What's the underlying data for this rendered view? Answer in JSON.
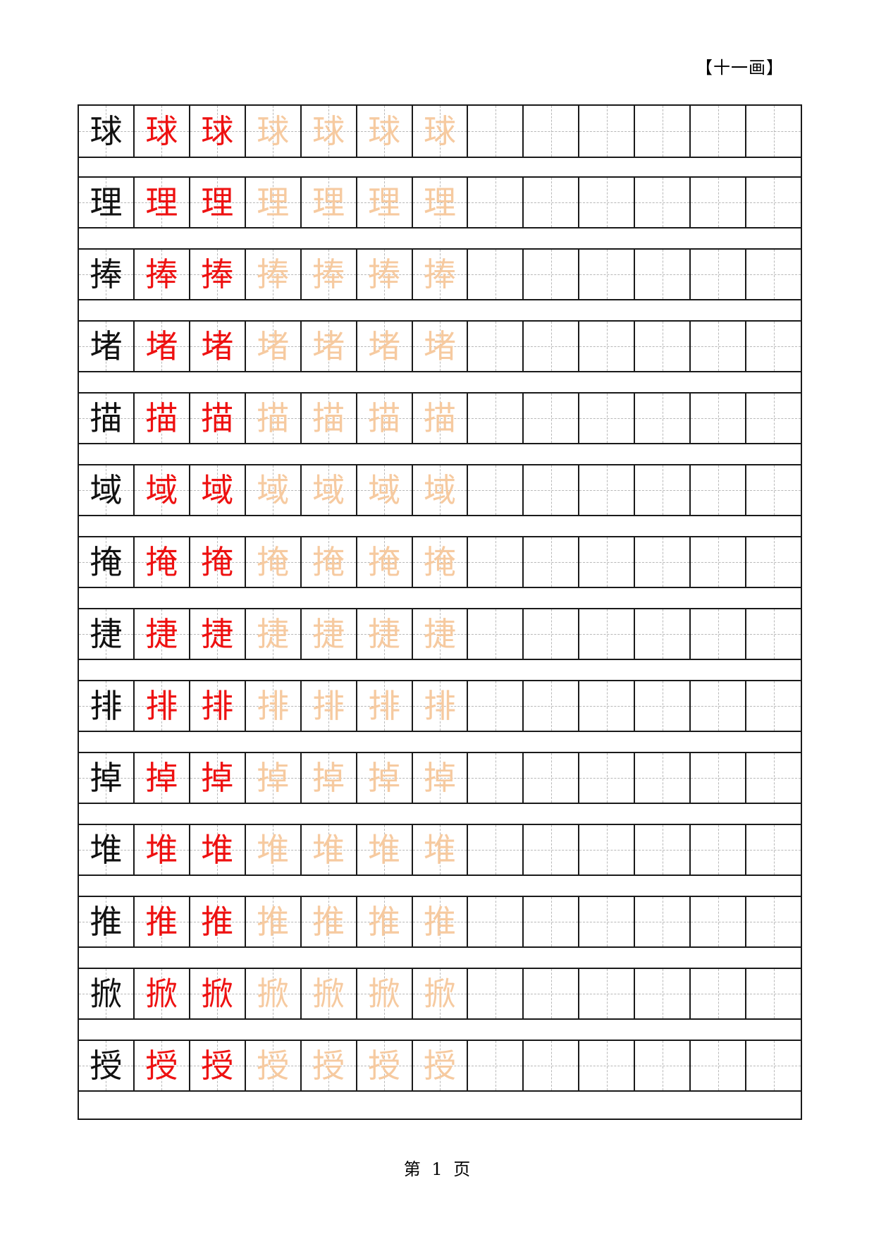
{
  "header": {
    "stroke_label": "【十一画】"
  },
  "grid": {
    "columns_per_row": 13,
    "red_copies": 2,
    "trace_copies": 4,
    "colors": {
      "model": "#111111",
      "red": "#ee1111",
      "trace": "#f6caa0",
      "grid_line": "#1a1a1a",
      "guide_line": "#b8b8b8"
    },
    "characters": [
      "球",
      "理",
      "捧",
      "堵",
      "描",
      "域",
      "掩",
      "捷",
      "排",
      "掉",
      "堆",
      "推",
      "掀",
      "授"
    ]
  },
  "footer": {
    "prefix": "第",
    "page_number": "1",
    "suffix": "页"
  }
}
